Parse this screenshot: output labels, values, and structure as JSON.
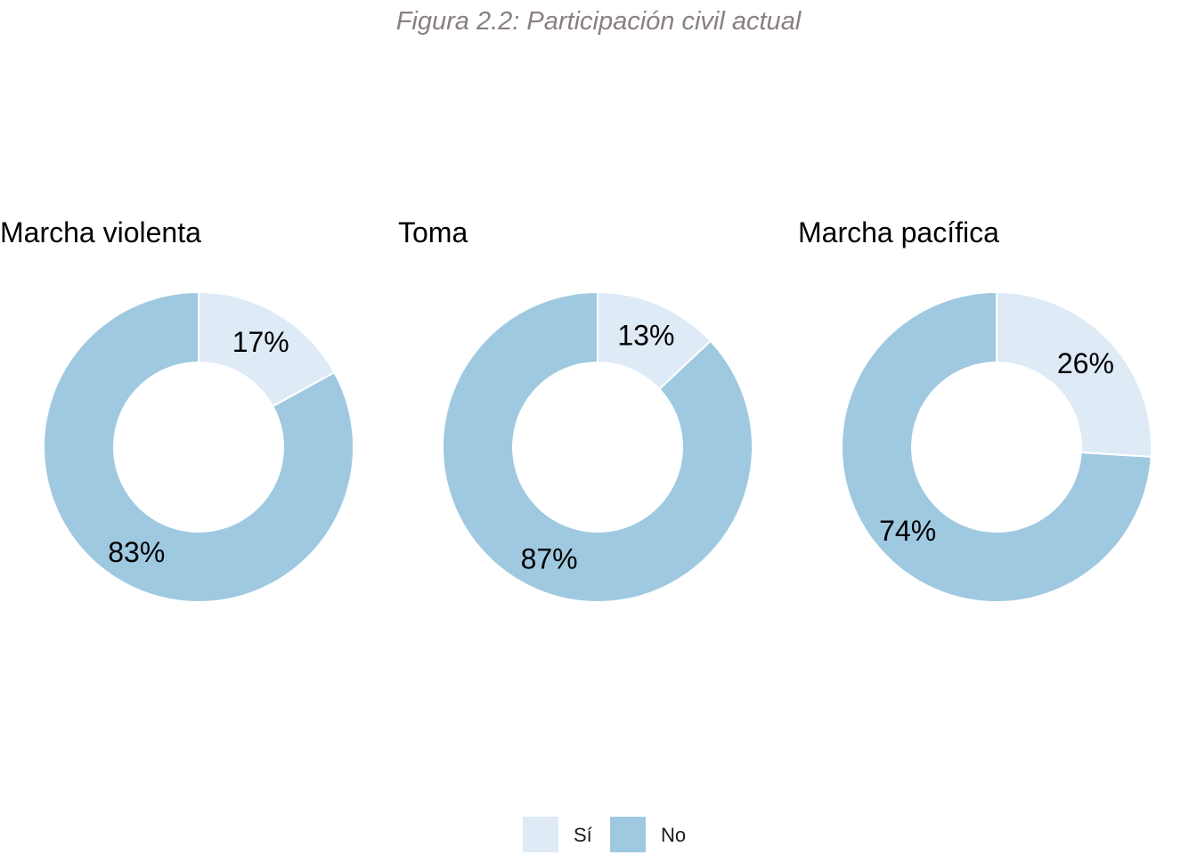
{
  "figure_title": "Figura 2.2: Participación civil actual",
  "colors": {
    "si": "#deeaf6",
    "no": "#9fc9e0",
    "separator": "#ffffff",
    "title": "#8a7f7f"
  },
  "legend": {
    "items": [
      {
        "key": "si",
        "label": "Sí"
      },
      {
        "key": "no",
        "label": "No"
      }
    ]
  },
  "chart_data": [
    {
      "type": "pie",
      "title": "Marcha violenta",
      "categories": [
        "Sí",
        "No"
      ],
      "values": [
        17,
        83
      ],
      "labels": [
        "17%",
        "83%"
      ]
    },
    {
      "type": "pie",
      "title": "Toma",
      "categories": [
        "Sí",
        "No"
      ],
      "values": [
        13,
        87
      ],
      "labels": [
        "13%",
        "87%"
      ]
    },
    {
      "type": "pie",
      "title": "Marcha pacífica",
      "categories": [
        "Sí",
        "No"
      ],
      "values": [
        26,
        74
      ],
      "labels": [
        "26%",
        "74%"
      ]
    }
  ]
}
